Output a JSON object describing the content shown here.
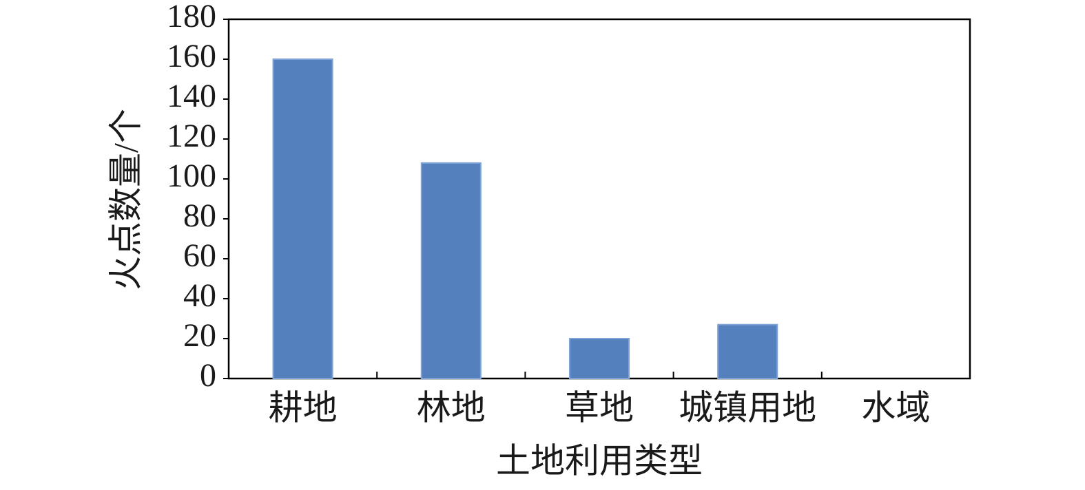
{
  "chart_data": {
    "type": "bar",
    "x_label": "土地利用类型",
    "y_label": "火点数量/个",
    "categories": [
      "耕地",
      "林地",
      "草地",
      "城镇用地",
      "水域"
    ],
    "values": [
      160,
      108,
      20,
      27,
      0
    ],
    "color": "#5580be",
    "ylim": [
      0,
      180
    ],
    "yticks": [
      0,
      20,
      40,
      60,
      80,
      100,
      120,
      140,
      160,
      180
    ],
    "grid": false
  }
}
